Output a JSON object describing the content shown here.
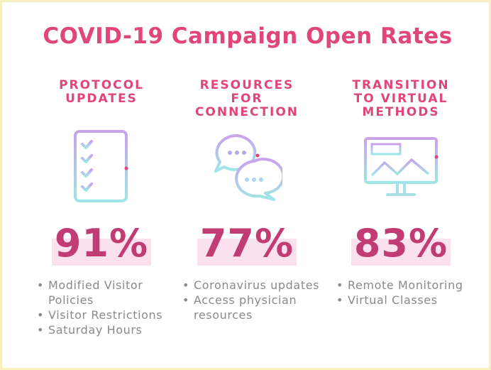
{
  "title": "COVID-19 Campaign Open Rates",
  "colors": {
    "title": "#e0457b",
    "percent": "#c23c74",
    "bullet_text": "#8a8a8a",
    "icon_gradient_top": "#c9a2ec",
    "icon_gradient_bottom": "#9ee7e6",
    "frame": "#f7f0bf"
  },
  "columns": [
    {
      "heading": "PROTOCOL\nUPDATES",
      "icon": "checklist-icon",
      "percent": "91%",
      "bullets": [
        "Modified Visitor Policies",
        "Visitor Restrictions",
        "Saturday Hours"
      ]
    },
    {
      "heading": "RESOURCES\nFOR\nCONNECTION",
      "icon": "chat-bubbles-icon",
      "percent": "77%",
      "bullets": [
        "Coronavirus updates",
        "Access physician resources"
      ]
    },
    {
      "heading": "TRANSITION\nTO VIRTUAL\nMETHODS",
      "icon": "monitor-chart-icon",
      "percent": "83%",
      "bullets": [
        "Remote Monitoring",
        "Virtual Classes"
      ]
    }
  ]
}
